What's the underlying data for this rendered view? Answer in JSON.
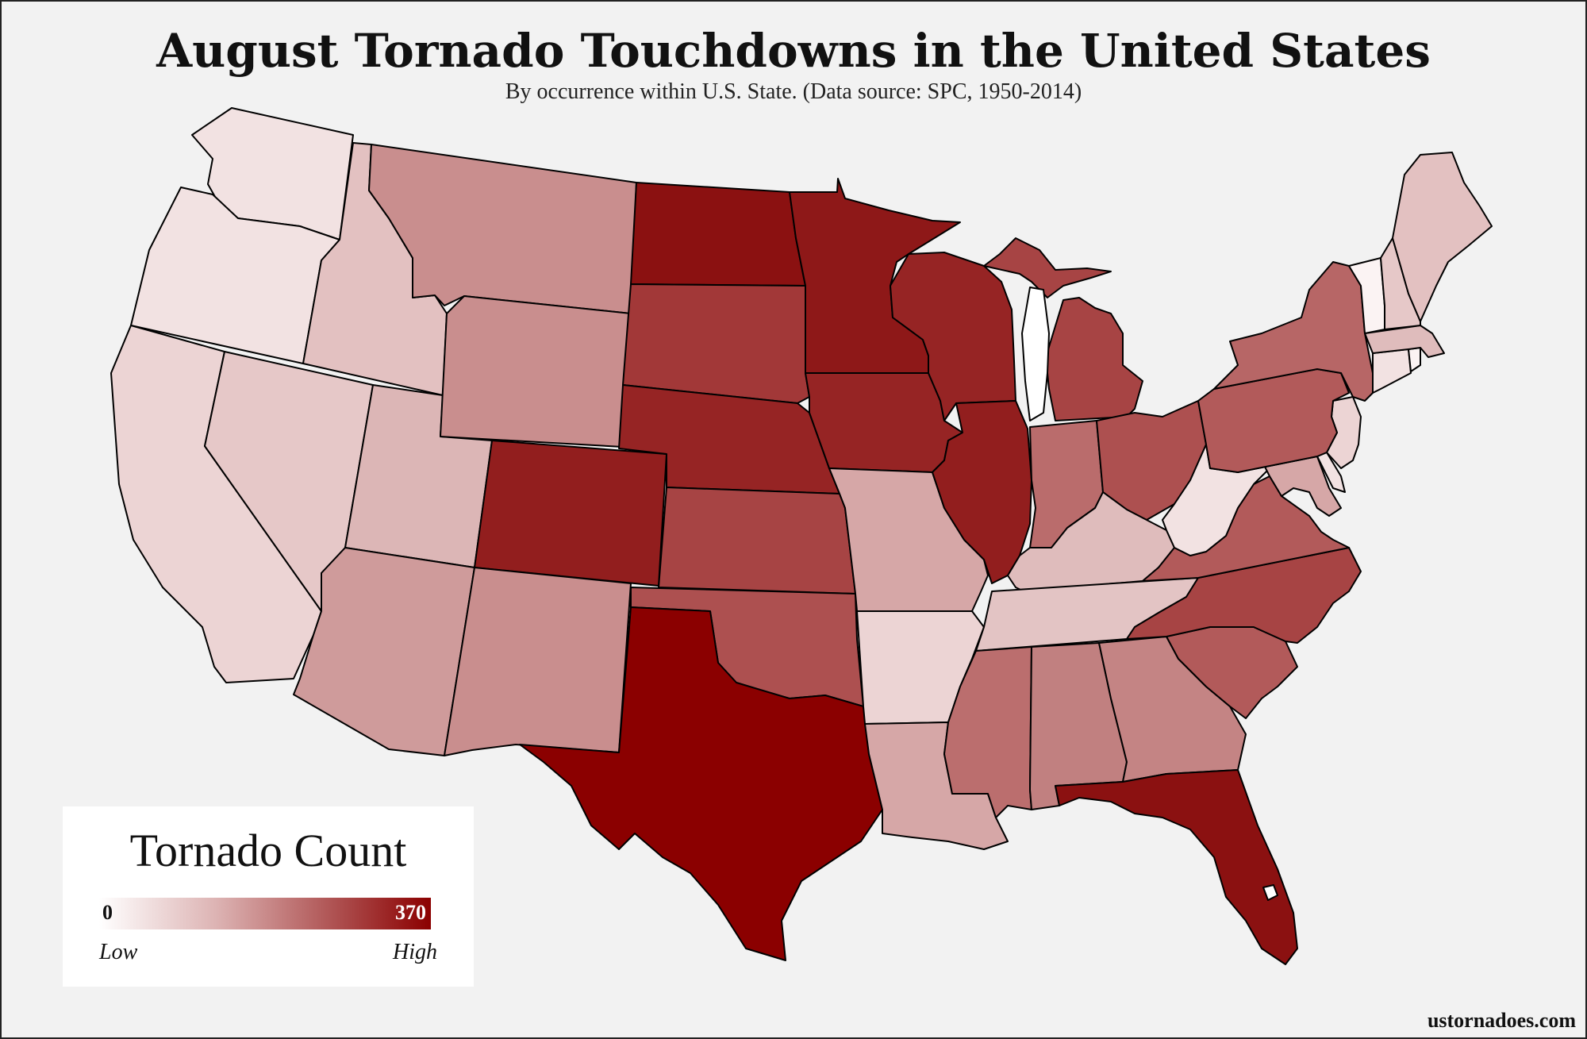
{
  "title": "August Tornado Touchdowns in the United States",
  "subtitle": "By occurrence within U.S. State. (Data source: SPC, 1950-2014)",
  "legend": {
    "title": "Tornado Count",
    "min_label": "0",
    "max_label": "370",
    "low_label": "Low",
    "high_label": "High",
    "color_low": "#ffffff",
    "color_high": "#8b0000"
  },
  "credit": "ustornadoes.com",
  "states": [
    {
      "name": "Washington",
      "fill": "#f2e2e2"
    },
    {
      "name": "Oregon",
      "fill": "#f2e2e2"
    },
    {
      "name": "California",
      "fill": "#ecd4d4"
    },
    {
      "name": "Idaho",
      "fill": "#e3c1c1"
    },
    {
      "name": "Nevada",
      "fill": "#e6c8c8"
    },
    {
      "name": "Utah",
      "fill": "#dcb6b6"
    },
    {
      "name": "Arizona",
      "fill": "#cf9b9b"
    },
    {
      "name": "Montana",
      "fill": "#c98e8e"
    },
    {
      "name": "Wyoming",
      "fill": "#c98e8e"
    },
    {
      "name": "Colorado",
      "fill": "#921e1e"
    },
    {
      "name": "New Mexico",
      "fill": "#c98e8e"
    },
    {
      "name": "North Dakota",
      "fill": "#8b1111"
    },
    {
      "name": "South Dakota",
      "fill": "#a23838"
    },
    {
      "name": "Nebraska",
      "fill": "#962424"
    },
    {
      "name": "Kansas",
      "fill": "#a74444"
    },
    {
      "name": "Oklahoma",
      "fill": "#ad5050"
    },
    {
      "name": "Texas",
      "fill": "#8b0000"
    },
    {
      "name": "Minnesota",
      "fill": "#8e1818"
    },
    {
      "name": "Iowa",
      "fill": "#962424"
    },
    {
      "name": "Missouri",
      "fill": "#d6a7a7"
    },
    {
      "name": "Arkansas",
      "fill": "#ecd4d4"
    },
    {
      "name": "Louisiana",
      "fill": "#d6a7a7"
    },
    {
      "name": "Wisconsin",
      "fill": "#962424"
    },
    {
      "name": "Illinois",
      "fill": "#921e1e"
    },
    {
      "name": "Michigan",
      "fill": "#a74444"
    },
    {
      "name": "Indiana",
      "fill": "#ba6c6c"
    },
    {
      "name": "Ohio",
      "fill": "#ad5050"
    },
    {
      "name": "Kentucky",
      "fill": "#dfbcbc"
    },
    {
      "name": "Tennessee",
      "fill": "#e3c4c4"
    },
    {
      "name": "Mississippi",
      "fill": "#bb6e6e"
    },
    {
      "name": "Alabama",
      "fill": "#c18080"
    },
    {
      "name": "Georgia",
      "fill": "#c48484"
    },
    {
      "name": "Florida",
      "fill": "#8b1111"
    },
    {
      "name": "South Carolina",
      "fill": "#b25a5a"
    },
    {
      "name": "North Carolina",
      "fill": "#a74444"
    },
    {
      "name": "Virginia",
      "fill": "#b25a5a"
    },
    {
      "name": "West Virginia",
      "fill": "#f2e2e2"
    },
    {
      "name": "Maryland",
      "fill": "#d6a7a7"
    },
    {
      "name": "Delaware",
      "fill": "#f2e2e2"
    },
    {
      "name": "New Jersey",
      "fill": "#ecd4d4"
    },
    {
      "name": "Pennsylvania",
      "fill": "#b25a5a"
    },
    {
      "name": "New York",
      "fill": "#b76666"
    },
    {
      "name": "Connecticut",
      "fill": "#f2e2e2"
    },
    {
      "name": "Rhode Island",
      "fill": "#fbf3f3"
    },
    {
      "name": "Massachusetts",
      "fill": "#dfbcbc"
    },
    {
      "name": "Vermont",
      "fill": "#fbf3f3"
    },
    {
      "name": "New Hampshire",
      "fill": "#e6c8c8"
    },
    {
      "name": "Maine",
      "fill": "#e3c1c1"
    }
  ]
}
